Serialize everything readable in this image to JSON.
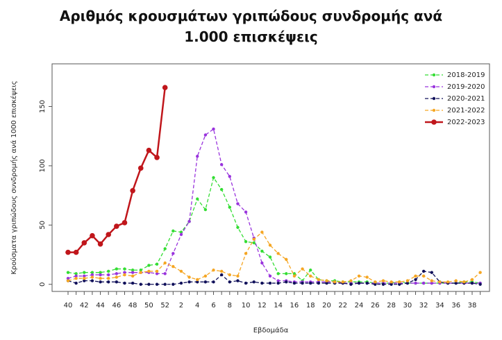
{
  "chart_data": {
    "type": "line",
    "title": "Αριθμός κρουσμάτων γριπώδους συνδρομής ανά 1.000 επισκέψεις",
    "x_label": "Εβδομάδα",
    "y_label": "Κρούσματα γριπώδους συνδρομής ανά 1000 επισκέψεις",
    "categories": [
      "40",
      null,
      "42",
      null,
      "44",
      null,
      "46",
      null,
      "48",
      null,
      "50",
      null,
      "52",
      null,
      "2",
      null,
      "4",
      null,
      "6",
      null,
      "8",
      null,
      "10",
      null,
      "12",
      null,
      "14",
      null,
      "16",
      null,
      "18",
      null,
      "20",
      null,
      "22",
      null,
      "24",
      null,
      "26",
      null,
      "28",
      null,
      "30",
      null,
      "32",
      null,
      "34",
      null,
      "36",
      null,
      "38",
      null
    ],
    "ylim": [
      -6,
      186
    ],
    "yticks": [
      0,
      50,
      100,
      150
    ],
    "grid": false,
    "legend": "top-right",
    "series": [
      {
        "name": "2018-2019",
        "color": "#33dd33",
        "style": "dashed",
        "values": [
          10,
          9,
          10,
          10,
          10,
          11,
          13,
          13,
          12,
          12,
          16,
          17,
          30,
          45,
          44,
          53,
          72,
          63,
          90,
          80,
          65,
          48,
          36,
          35,
          28,
          23,
          9,
          9,
          9,
          3,
          12,
          4,
          3,
          3,
          2,
          2,
          2,
          2,
          1,
          1,
          1,
          2,
          1,
          1,
          1,
          1,
          1,
          1,
          1,
          2,
          2,
          1
        ]
      },
      {
        "name": "2019-2020",
        "color": "#9933dd",
        "style": "dashed",
        "values": [
          5,
          7,
          7,
          8,
          8,
          8,
          9,
          10,
          10,
          10,
          10,
          9,
          9,
          26,
          42,
          53,
          108,
          126,
          131,
          101,
          91,
          68,
          61,
          39,
          18,
          7,
          3,
          3,
          2,
          2,
          2,
          2,
          2,
          2,
          1,
          1,
          1,
          1,
          1,
          1,
          1,
          1,
          1,
          1,
          1,
          1,
          1,
          1,
          1,
          1,
          1,
          1
        ]
      },
      {
        "name": "2020-2021",
        "color": "#10105a",
        "style": "dashed",
        "values": [
          3,
          1,
          3,
          3,
          2,
          2,
          2,
          1,
          1,
          0,
          0,
          0,
          0,
          0,
          1,
          2,
          2,
          2,
          2,
          8,
          2,
          3,
          1,
          2,
          1,
          1,
          1,
          2,
          1,
          1,
          1,
          1,
          1,
          1,
          1,
          0,
          1,
          1,
          0,
          0,
          0,
          0,
          1,
          4,
          11,
          10,
          2,
          1,
          1,
          1,
          1,
          0
        ]
      },
      {
        "name": "2021-2022",
        "color": "#f5a623",
        "style": "dashed",
        "values": [
          3,
          5,
          5,
          6,
          5,
          5,
          6,
          8,
          7,
          10,
          11,
          11,
          18,
          15,
          11,
          6,
          4,
          7,
          12,
          11,
          8,
          7,
          26,
          38,
          44,
          33,
          26,
          21,
          7,
          13,
          7,
          4,
          3,
          2,
          2,
          3,
          7,
          6,
          2,
          3,
          2,
          2,
          3,
          7,
          7,
          3,
          2,
          2,
          3,
          2,
          4,
          10
        ]
      },
      {
        "name": "2022-2023",
        "color": "#c0161b",
        "style": "solid",
        "values": [
          27,
          27,
          35,
          41,
          34,
          42,
          49,
          52,
          79,
          98,
          113,
          107,
          166,
          null,
          null,
          null,
          null,
          null,
          null,
          null,
          null,
          null,
          null,
          null,
          null,
          null,
          null,
          null,
          null,
          null,
          null,
          null,
          null,
          null,
          null,
          null,
          null,
          null,
          null,
          null,
          null,
          null,
          null,
          null,
          null,
          null,
          null,
          null,
          null,
          null,
          null,
          null
        ]
      }
    ]
  }
}
